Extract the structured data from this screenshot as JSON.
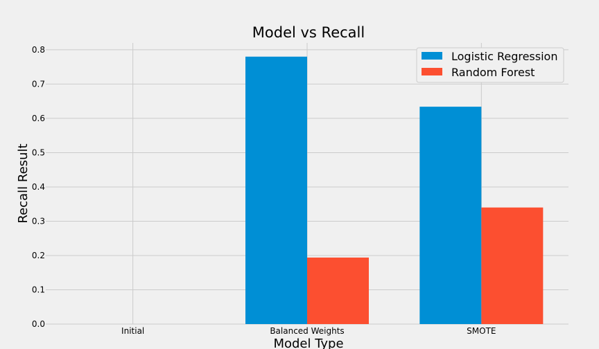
{
  "chart_data": {
    "type": "bar",
    "title": "Model vs Recall",
    "xlabel": "Model Type",
    "ylabel": "Recall Result",
    "categories": [
      "Initial",
      "Balanced Weights",
      "SMOTE"
    ],
    "series": [
      {
        "name": "Logistic Regression",
        "color": "#008fd5",
        "values": [
          0.0,
          0.78,
          0.634
        ]
      },
      {
        "name": "Random Forest",
        "color": "#fc4f30",
        "values": [
          0.0,
          0.194,
          0.34
        ]
      }
    ],
    "ylim": [
      0,
      0.82
    ],
    "yticks": [
      "0.0",
      "0.1",
      "0.2",
      "0.3",
      "0.4",
      "0.5",
      "0.6",
      "0.7",
      "0.8"
    ],
    "grid": true,
    "legend_position": "top-right"
  }
}
